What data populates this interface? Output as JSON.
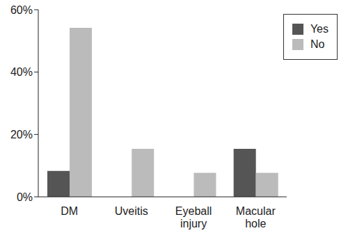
{
  "chart_data": {
    "type": "bar",
    "categories": [
      "DM",
      "Uveitis",
      "Eyeball injury",
      "Macular hole"
    ],
    "series": [
      {
        "name": "Yes",
        "color": "#555555",
        "values": [
          8.3,
          0,
          0,
          15.4
        ]
      },
      {
        "name": "No",
        "color": "#bbbbbb",
        "values": [
          54.2,
          15.4,
          7.7,
          7.7
        ]
      }
    ],
    "ylim": [
      0,
      60
    ],
    "yticks": [
      {
        "value": 0,
        "label": "0%"
      },
      {
        "value": 20,
        "label": "20%"
      },
      {
        "value": 40,
        "label": "40%"
      },
      {
        "value": 60,
        "label": "60%"
      }
    ],
    "grid": false,
    "legend": "top-right"
  }
}
